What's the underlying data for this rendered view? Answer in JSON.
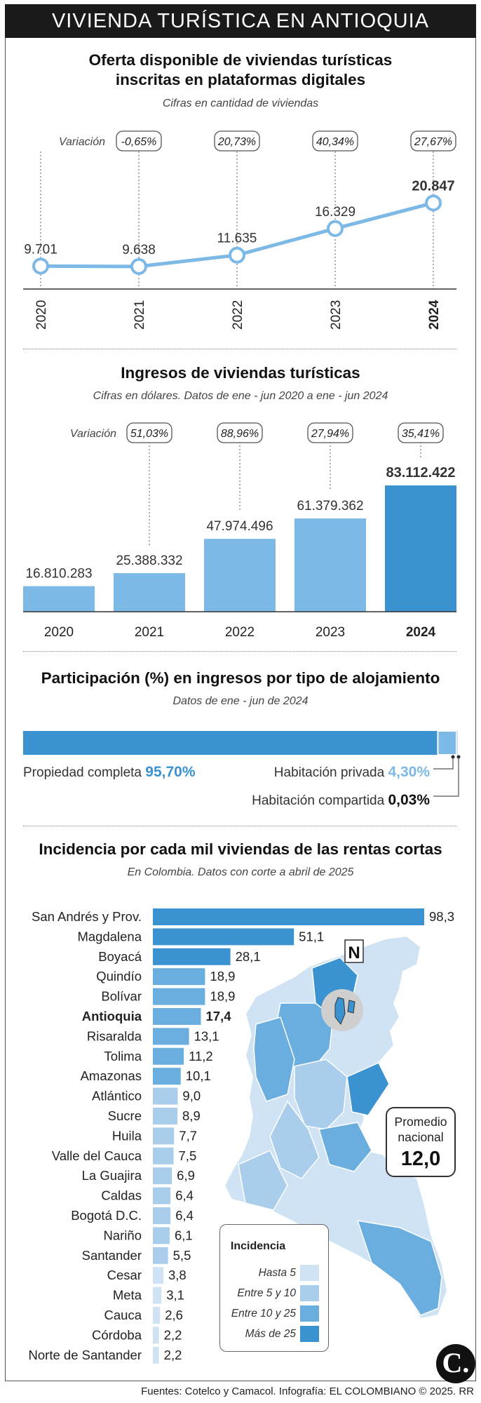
{
  "header": {
    "title": "VIVIENDA TURÍSTICA EN ANTIOQUIA"
  },
  "footer": {
    "text": "Fuentes: Cotelco y Camacol. Infografía: EL COLOMBIANO © 2025. RR"
  },
  "colors": {
    "accent": "#3a93d0",
    "light": "#7db9e6",
    "dark_line": "#1a1a1a",
    "header_bg": "#1a1a1a"
  },
  "chart_data": [
    {
      "type": "line",
      "title": "Oferta disponible de viviendas turísticas inscritas en plataformas digitales",
      "title_line1": "Oferta disponible de viviendas turísticas",
      "title_line2": "inscritas en plataformas digitales",
      "subtitle": "Cifras en cantidad de viviendas",
      "variation_label": "Variación",
      "categories": [
        "2020",
        "2021",
        "2022",
        "2023",
        "2024"
      ],
      "values": [
        9701,
        9638,
        11635,
        16329,
        20847
      ],
      "value_labels": [
        "9.701",
        "9.638",
        "11.635",
        "16.329",
        "20.847"
      ],
      "variations": [
        null,
        "-0,65%",
        "20,73%",
        "40,34%",
        "27,67%"
      ],
      "highlight": "2024",
      "ylim": [
        9000,
        22000
      ]
    },
    {
      "type": "bar",
      "title": "Ingresos de viviendas turísticas",
      "subtitle": "Cifras en dólares. Datos de ene - jun 2020 a ene - jun 2024",
      "variation_label": "Variación",
      "categories": [
        "2020",
        "2021",
        "2022",
        "2023",
        "2024"
      ],
      "values": [
        16810283,
        25388332,
        47974496,
        61379362,
        83112422
      ],
      "value_labels": [
        "16.810.283",
        "25.388.332",
        "47.974.496",
        "61.379.362",
        "83.112.422"
      ],
      "variations": [
        null,
        "51,03%",
        "88,96%",
        "27,94%",
        "35,41%"
      ],
      "highlight": "2024",
      "ylim": [
        0,
        83112422
      ]
    },
    {
      "type": "bar",
      "orientation": "stacked-horizontal",
      "title": "Participación (%) en ingresos por tipo de alojamiento",
      "subtitle": "Datos de ene - jun de 2024",
      "segments": [
        {
          "name": "Propiedad completa",
          "value": 95.7,
          "label": "95,70%"
        },
        {
          "name": "Habitación privada",
          "value": 4.3,
          "label": "4,30%"
        },
        {
          "name": "Habitación compartida",
          "value": 0.03,
          "label": "0,03%"
        }
      ]
    },
    {
      "type": "bar",
      "orientation": "horizontal",
      "title": "Incidencia por cada mil viviendas de las rentas cortas",
      "subtitle": "En Colombia. Datos con corte a abril de 2025",
      "highlight": "Antioquia",
      "xlim": [
        0,
        98.3
      ],
      "categories": [
        "San Andrés y Prov.",
        "Magdalena",
        "Boyacá",
        "Quindío",
        "Bolívar",
        "Antioquia",
        "Risaralda",
        "Tolima",
        "Amazonas",
        "Atlántico",
        "Sucre",
        "Huila",
        "Valle del Cauca",
        "La Guajira",
        "Caldas",
        "Bogotá D.C.",
        "Nariño",
        "Santander",
        "Cesar",
        "Meta",
        "Cauca",
        "Córdoba",
        "Norte de Santander"
      ],
      "values": [
        98.3,
        51.1,
        28.1,
        18.9,
        18.9,
        17.4,
        13.1,
        11.2,
        10.1,
        9.0,
        8.9,
        7.7,
        7.5,
        6.9,
        6.4,
        6.4,
        6.1,
        5.5,
        3.8,
        3.1,
        2.6,
        2.2,
        2.2
      ],
      "value_labels": [
        "98,3",
        "51,1",
        "28,1",
        "18,9",
        "18,9",
        "17,4",
        "13,1",
        "11,2",
        "10,1",
        "9,0",
        "8,9",
        "7,7",
        "7,5",
        "6,9",
        "6,4",
        "6,4",
        "6,1",
        "5,5",
        "3,8",
        "3,1",
        "2,6",
        "2,2",
        "2,2"
      ],
      "average": {
        "label_line1": "Promedio",
        "label_line2": "nacional",
        "value": "12,0"
      },
      "legend": {
        "title": "Incidencia",
        "items": [
          {
            "label": "Hasta 5",
            "color": "#cfe3f4"
          },
          {
            "label": "Entre 5 y 10",
            "color": "#a9cdeb"
          },
          {
            "label": "Entre 10 y 25",
            "color": "#6aaee0"
          },
          {
            "label": "Más de 25",
            "color": "#3a93d0"
          }
        ]
      },
      "map": {
        "north_symbol": "N"
      }
    }
  ],
  "logo": {
    "text": "C."
  }
}
